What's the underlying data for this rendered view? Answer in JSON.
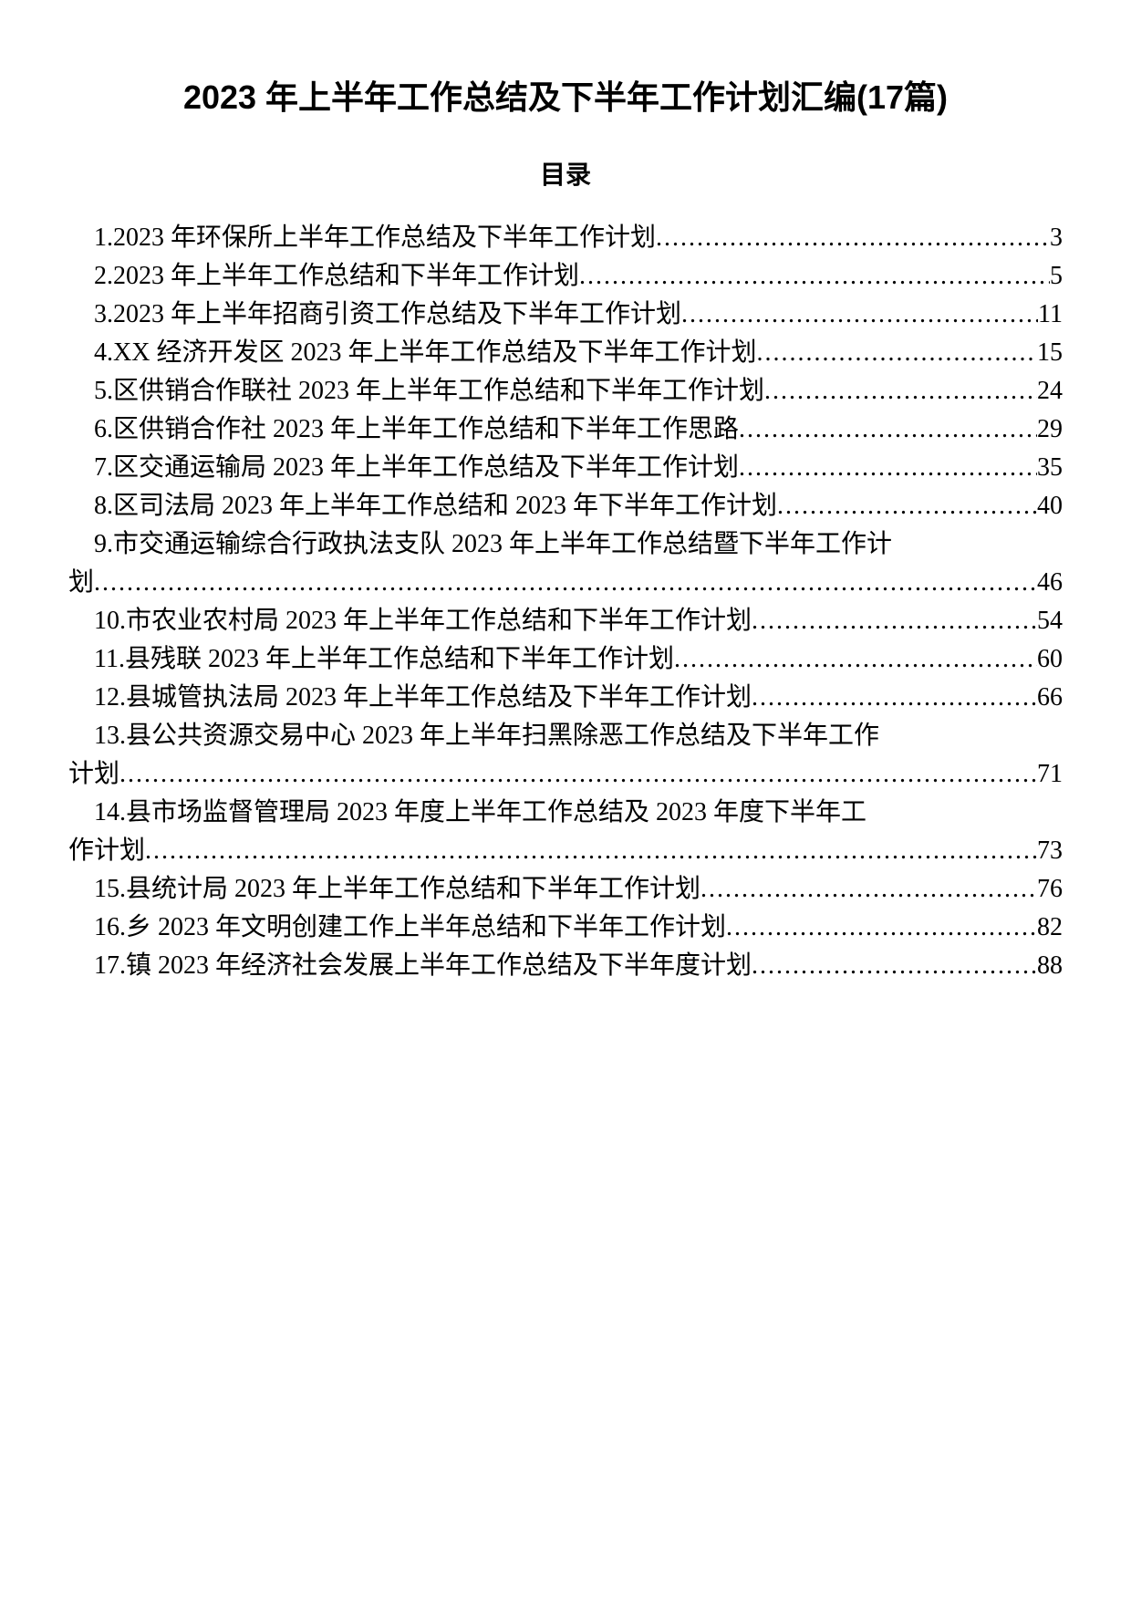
{
  "document": {
    "title": "2023 年上半年工作总结及下半年工作计划汇编(17篇)",
    "toc_heading": "目录",
    "entries": [
      {
        "text": "1.2023 年环保所上半年工作总结及下半年工作计划",
        "page": "3",
        "indent": true,
        "wrap": false
      },
      {
        "text": "2.2023 年上半年工作总结和下半年工作计划",
        "page": "5",
        "indent": true,
        "wrap": false
      },
      {
        "text": "3.2023 年上半年招商引资工作总结及下半年工作计划",
        "page": "11",
        "indent": true,
        "wrap": false
      },
      {
        "text": "4.XX 经济开发区 2023 年上半年工作总结及下半年工作计划",
        "page": "15",
        "indent": true,
        "wrap": false
      },
      {
        "text": "5.区供销合作联社 2023 年上半年工作总结和下半年工作计划",
        "page": "24",
        "indent": true,
        "wrap": false
      },
      {
        "text": "6.区供销合作社 2023 年上半年工作总结和下半年工作思路",
        "page": "29",
        "indent": true,
        "wrap": false
      },
      {
        "text": "7.区交通运输局 2023 年上半年工作总结及下半年工作计划",
        "page": "35",
        "indent": true,
        "wrap": false
      },
      {
        "text": "8.区司法局 2023 年上半年工作总结和 2023 年下半年工作计划",
        "page": "40",
        "indent": true,
        "wrap": false
      },
      {
        "text": "9.市交通运输综合行政执法支队 2023 年上半年工作总结暨下半年工作计",
        "cont": "划",
        "page": "46",
        "indent": true,
        "wrap": true
      },
      {
        "text": "10.市农业农村局 2023 年上半年工作总结和下半年工作计划",
        "page": "54",
        "indent": true,
        "wrap": false
      },
      {
        "text": "11.县残联 2023 年上半年工作总结和下半年工作计划",
        "page": "60",
        "indent": true,
        "wrap": false
      },
      {
        "text": "12.县城管执法局 2023 年上半年工作总结及下半年工作计划",
        "page": "66",
        "indent": true,
        "wrap": false
      },
      {
        "text": "13.县公共资源交易中心 2023 年上半年扫黑除恶工作总结及下半年工作",
        "cont": "计划",
        "page": "71",
        "indent": true,
        "wrap": true
      },
      {
        "text": "14.县市场监督管理局 2023 年度上半年工作总结及 2023 年度下半年工",
        "cont": "作计划",
        "page": "73",
        "indent": true,
        "wrap": true
      },
      {
        "text": "15.县统计局 2023 年上半年工作总结和下半年工作计划",
        "page": "76",
        "indent": true,
        "wrap": false
      },
      {
        "text": "16.乡 2023 年文明创建工作上半年总结和下半年工作计划",
        "page": "82",
        "indent": true,
        "wrap": false
      },
      {
        "text": "17.镇 2023 年经济社会发展上半年工作总结及下半年度计划",
        "page": "88",
        "indent": true,
        "wrap": false
      }
    ]
  }
}
